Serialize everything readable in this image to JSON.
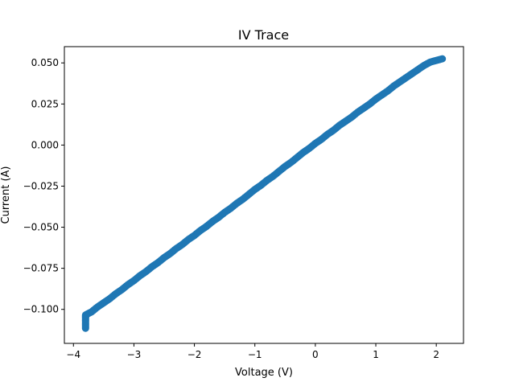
{
  "chart_data": {
    "type": "scatter",
    "title": "IV Trace",
    "xlabel": "Voltage (V)",
    "ylabel": "Current (A)",
    "xlim": [
      -4.15,
      2.45
    ],
    "ylim": [
      -0.1207,
      0.0599
    ],
    "x_ticks": [
      -4,
      -3,
      -2,
      -1,
      0,
      1,
      2
    ],
    "x_tick_labels": [
      "−4",
      "−3",
      "−2",
      "−1",
      "0",
      "1",
      "2"
    ],
    "y_ticks": [
      -0.1,
      -0.075,
      -0.05,
      -0.025,
      0.0,
      0.025,
      0.05
    ],
    "y_tick_labels": [
      "−0.100",
      "−0.075",
      "−0.050",
      "−0.025",
      "0.000",
      "0.025",
      "0.050"
    ],
    "grid": false,
    "color": "#1f77b4",
    "series": [
      {
        "x": [
          -3.8,
          -3.8,
          -3.8,
          -3.8,
          -3.8,
          -3.8,
          -3.79,
          -3.79,
          -3.78,
          -3.7,
          -3.6,
          -3.5,
          -3.4,
          -3.3,
          -3.2,
          -3.1,
          -3.0,
          -2.9,
          -2.8,
          -2.7,
          -2.6,
          -2.5,
          -2.4,
          -2.3,
          -2.2,
          -2.1,
          -2.0,
          -1.9,
          -1.8,
          -1.7,
          -1.6,
          -1.5,
          -1.4,
          -1.3,
          -1.2,
          -1.1,
          -1.0,
          -0.9,
          -0.8,
          -0.7,
          -0.6,
          -0.5,
          -0.4,
          -0.3,
          -0.2,
          -0.1,
          0.0,
          0.1,
          0.2,
          0.3,
          0.4,
          0.5,
          0.6,
          0.7,
          0.8,
          0.9,
          1.0,
          1.1,
          1.2,
          1.3,
          1.4,
          1.5,
          1.6,
          1.7,
          1.8,
          1.9,
          2.0,
          2.1
        ],
        "y": [
          -0.1115,
          -0.1095,
          -0.1075,
          -0.1055,
          -0.1045,
          -0.1035,
          -0.1037,
          -0.1033,
          -0.103,
          -0.1015,
          -0.0985,
          -0.096,
          -0.0935,
          -0.0905,
          -0.088,
          -0.085,
          -0.0825,
          -0.0795,
          -0.077,
          -0.074,
          -0.0715,
          -0.0685,
          -0.066,
          -0.063,
          -0.0605,
          -0.0575,
          -0.055,
          -0.052,
          -0.0495,
          -0.0465,
          -0.044,
          -0.041,
          -0.0385,
          -0.0355,
          -0.033,
          -0.03,
          -0.027,
          -0.0245,
          -0.0215,
          -0.019,
          -0.016,
          -0.013,
          -0.0105,
          -0.0075,
          -0.0045,
          -0.002,
          0.001,
          0.0035,
          0.0065,
          0.009,
          0.012,
          0.0145,
          0.017,
          0.02,
          0.0225,
          0.025,
          0.028,
          0.0305,
          0.033,
          0.036,
          0.0385,
          0.041,
          0.0435,
          0.046,
          0.0485,
          0.0505,
          0.0515,
          0.0525
        ]
      }
    ]
  }
}
